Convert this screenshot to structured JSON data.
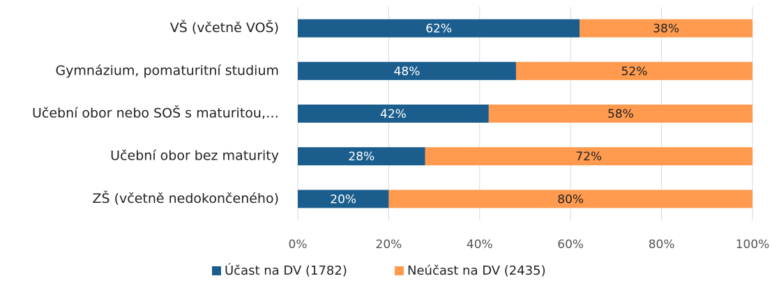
{
  "chart_data": {
    "type": "stacked_barh",
    "categories": [
      "VŠ (včetně VOŠ)",
      "Gymnázium, pomaturitní studium",
      "Učební obor nebo SOŠ s maturitou,…",
      "Učební obor bez maturity",
      "ZŠ (včetně nedokončeného)"
    ],
    "series": [
      {
        "name": "Účast na DV (1782)",
        "color": "#1b5e8e",
        "label_color": "#ffffff",
        "values": [
          62,
          48,
          42,
          28,
          20
        ],
        "value_labels": [
          "62%",
          "48%",
          "42%",
          "28%",
          "20%"
        ]
      },
      {
        "name": "Neúčast na DV (2435)",
        "color": "#ff9a4f",
        "label_color": "#222222",
        "values": [
          38,
          52,
          58,
          72,
          80
        ],
        "value_labels": [
          "38%",
          "52%",
          "58%",
          "72%",
          "80%"
        ]
      }
    ],
    "xlim": [
      0,
      100
    ],
    "xticks": [
      {
        "value": 0,
        "label": "0%"
      },
      {
        "value": 20,
        "label": "20%"
      },
      {
        "value": 40,
        "label": "40%"
      },
      {
        "value": 60,
        "label": "60%"
      },
      {
        "value": 80,
        "label": "80%"
      },
      {
        "value": 100,
        "label": "100%"
      }
    ],
    "grid": true,
    "legend": "bottom"
  }
}
